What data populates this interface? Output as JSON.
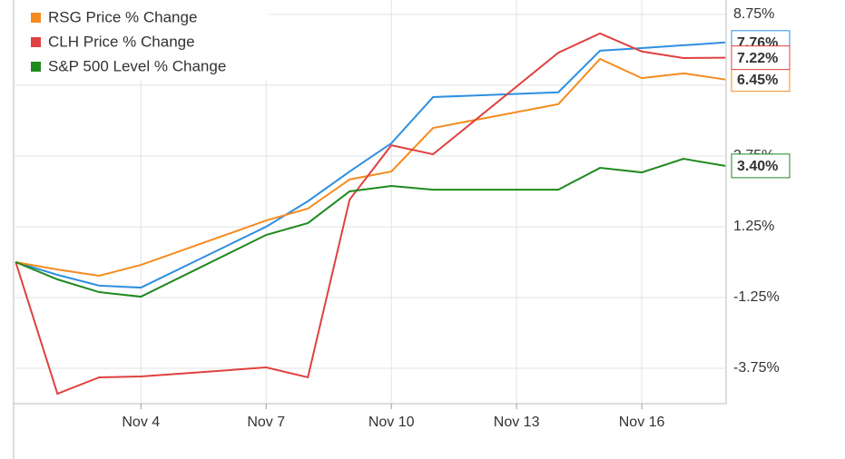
{
  "chart_data": {
    "type": "line",
    "x": [
      1,
      2,
      3,
      4,
      7,
      8,
      9,
      10,
      11,
      14,
      15,
      16,
      17,
      18
    ],
    "xlim": [
      0.95,
      18.02
    ],
    "xticks": [
      {
        "value": 4,
        "label": "Nov 4"
      },
      {
        "value": 7,
        "label": "Nov 7"
      },
      {
        "value": 10,
        "label": "Nov 10"
      },
      {
        "value": 13,
        "label": "Nov 13"
      },
      {
        "value": 16,
        "label": "Nov 16"
      }
    ],
    "ylim": [
      -5,
      9.26
    ],
    "yticks": [
      {
        "value": -3.75,
        "label": "-3.75%"
      },
      {
        "value": -1.25,
        "label": "-1.25%"
      },
      {
        "value": 1.25,
        "label": "1.25%"
      },
      {
        "value": 3.75,
        "label": "3.75%"
      },
      {
        "value": 6.25,
        "label": "6.25%"
      },
      {
        "value": 8.75,
        "label": "8.75%"
      }
    ],
    "grid": true,
    "legend": "top-left",
    "series": [
      {
        "color": "#2f8fe0",
        "values": [
          0,
          -0.45,
          -0.83,
          -0.9,
          1.25,
          2.15,
          3.2,
          4.2,
          5.83,
          6.0,
          7.47,
          7.56,
          7.66,
          7.76
        ],
        "value_labels": [
          null,
          null,
          null,
          null,
          null,
          null,
          null,
          null,
          null,
          null,
          null,
          null,
          null,
          "7.76%"
        ]
      },
      {
        "name": "RSG Price % Change",
        "color": "#f58b1f",
        "values": [
          0,
          -0.26,
          -0.48,
          -0.1,
          1.47,
          1.89,
          2.92,
          3.2,
          4.74,
          5.58,
          7.18,
          6.5,
          6.67,
          6.45
        ],
        "value_labels": [
          null,
          null,
          null,
          null,
          null,
          null,
          null,
          null,
          null,
          null,
          null,
          null,
          null,
          "6.45%"
        ]
      },
      {
        "name": "CLH Price % Change",
        "color": "#e04040",
        "values": [
          0,
          -4.65,
          -4.07,
          -4.04,
          -3.72,
          -4.07,
          2.21,
          4.13,
          3.81,
          7.4,
          8.08,
          7.44,
          7.21,
          7.22
        ],
        "value_labels": [
          null,
          null,
          null,
          null,
          null,
          null,
          null,
          null,
          null,
          null,
          null,
          null,
          null,
          "7.22%"
        ]
      },
      {
        "name": "S&P 500 Level % Change",
        "color": "#1f8a1f",
        "values": [
          0,
          -0.61,
          -1.06,
          -1.22,
          0.96,
          1.38,
          2.5,
          2.69,
          2.56,
          2.56,
          3.33,
          3.17,
          3.65,
          3.4
        ],
        "value_labels": [
          null,
          null,
          null,
          null,
          null,
          null,
          null,
          null,
          null,
          null,
          null,
          null,
          null,
          "3.40%"
        ]
      }
    ]
  }
}
